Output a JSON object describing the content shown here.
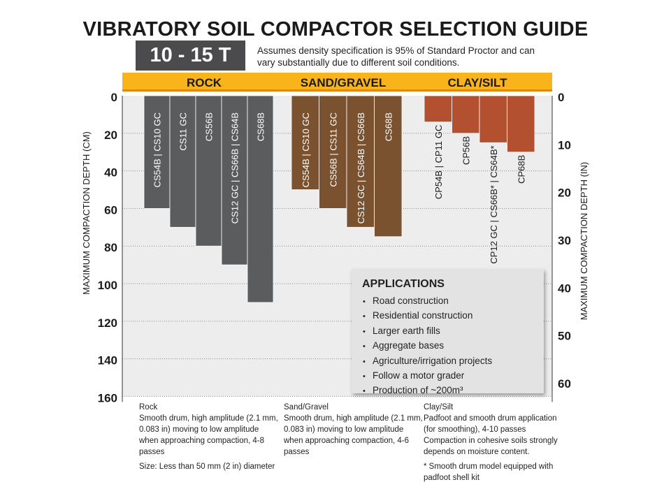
{
  "title": "VIBRATORY SOIL COMPACTOR SELECTION GUIDE",
  "badge": "10 - 15 T",
  "note": "Assumes density specification is 95% of Standard Proctor and can vary substantially due to different soil conditions.",
  "colors": {
    "header_band": "#f9b31b",
    "header_band_edge": "#e08a00",
    "rock": "#5b5c5e",
    "sand_gravel": "#7a5230",
    "clay_silt": "#b3502f",
    "plot_background": "#ededed",
    "badge": "#4b4b4d"
  },
  "chart_data": {
    "type": "bar",
    "orientation": "downward",
    "y_left": {
      "label": "MAXIMUM COMPACTION DEPTH  (CM)",
      "range": [
        0,
        160
      ],
      "ticks": [
        0,
        20,
        40,
        60,
        80,
        100,
        120,
        140,
        160
      ]
    },
    "y_right": {
      "label": "MAXIMUM COMPACTION DEPTH  (IN)",
      "range": [
        0,
        63
      ],
      "ticks": [
        0,
        10,
        20,
        30,
        40,
        50,
        60
      ]
    },
    "gridlines": true,
    "groups": [
      {
        "name": "ROCK",
        "color_key": "rock",
        "bars": [
          {
            "label": "CS54B | CS10 GC",
            "value": 60
          },
          {
            "label": "CS11 GC",
            "value": 70
          },
          {
            "label": "CS56B",
            "value": 80
          },
          {
            "label": "CS12 GC  | CS66B | CS64B",
            "value": 90
          },
          {
            "label": "CS68B",
            "value": 110
          }
        ]
      },
      {
        "name": "SAND/GRAVEL",
        "color_key": "sand_gravel",
        "bars": [
          {
            "label": "CS54B | CS10 GC",
            "value": 50
          },
          {
            "label": "CS56B | CS11 GC",
            "value": 60
          },
          {
            "label": "CS12 GC | CS64B | CS66B",
            "value": 70
          },
          {
            "label": "CS68B",
            "value": 75
          }
        ]
      },
      {
        "name": "CLAY/SILT",
        "color_key": "clay_silt",
        "bars": [
          {
            "label": "CP54B | CP11 GC",
            "value": 14
          },
          {
            "label": "CP56B",
            "value": 20
          },
          {
            "label": "CP12 GC | CS66B* | CS64B*",
            "value": 25
          },
          {
            "label": "CP68B",
            "value": 30
          }
        ]
      }
    ]
  },
  "applications": {
    "title": "APPLICATIONS",
    "items": [
      "Road construction",
      "Residential construction",
      "Larger earth fills",
      "Aggregate bases",
      "Agriculture/irrigation projects",
      "Follow a motor grader",
      "Production of ~200m³"
    ]
  },
  "footnotes": {
    "rock": {
      "heading": "Rock",
      "text": "Smooth drum, high amplitude (2.1 mm, 0.083 in) moving to low amplitude when approaching compaction, 4-8 passes",
      "extra": "Size: Less than 50 mm (2 in) diameter"
    },
    "sand": {
      "heading": "Sand/Gravel",
      "text": "Smooth drum, high amplitude (2.1 mm, 0.083 in) moving to low amplitude when approaching compaction, 4-6 passes"
    },
    "clay": {
      "heading": "Clay/Silt",
      "text": "Padfoot and smooth drum application (for smoothing), 4-10 passes Compaction in cohesive soils strongly depends on moisture content.",
      "extra": "* Smooth drum model equipped with padfoot shell kit"
    }
  }
}
